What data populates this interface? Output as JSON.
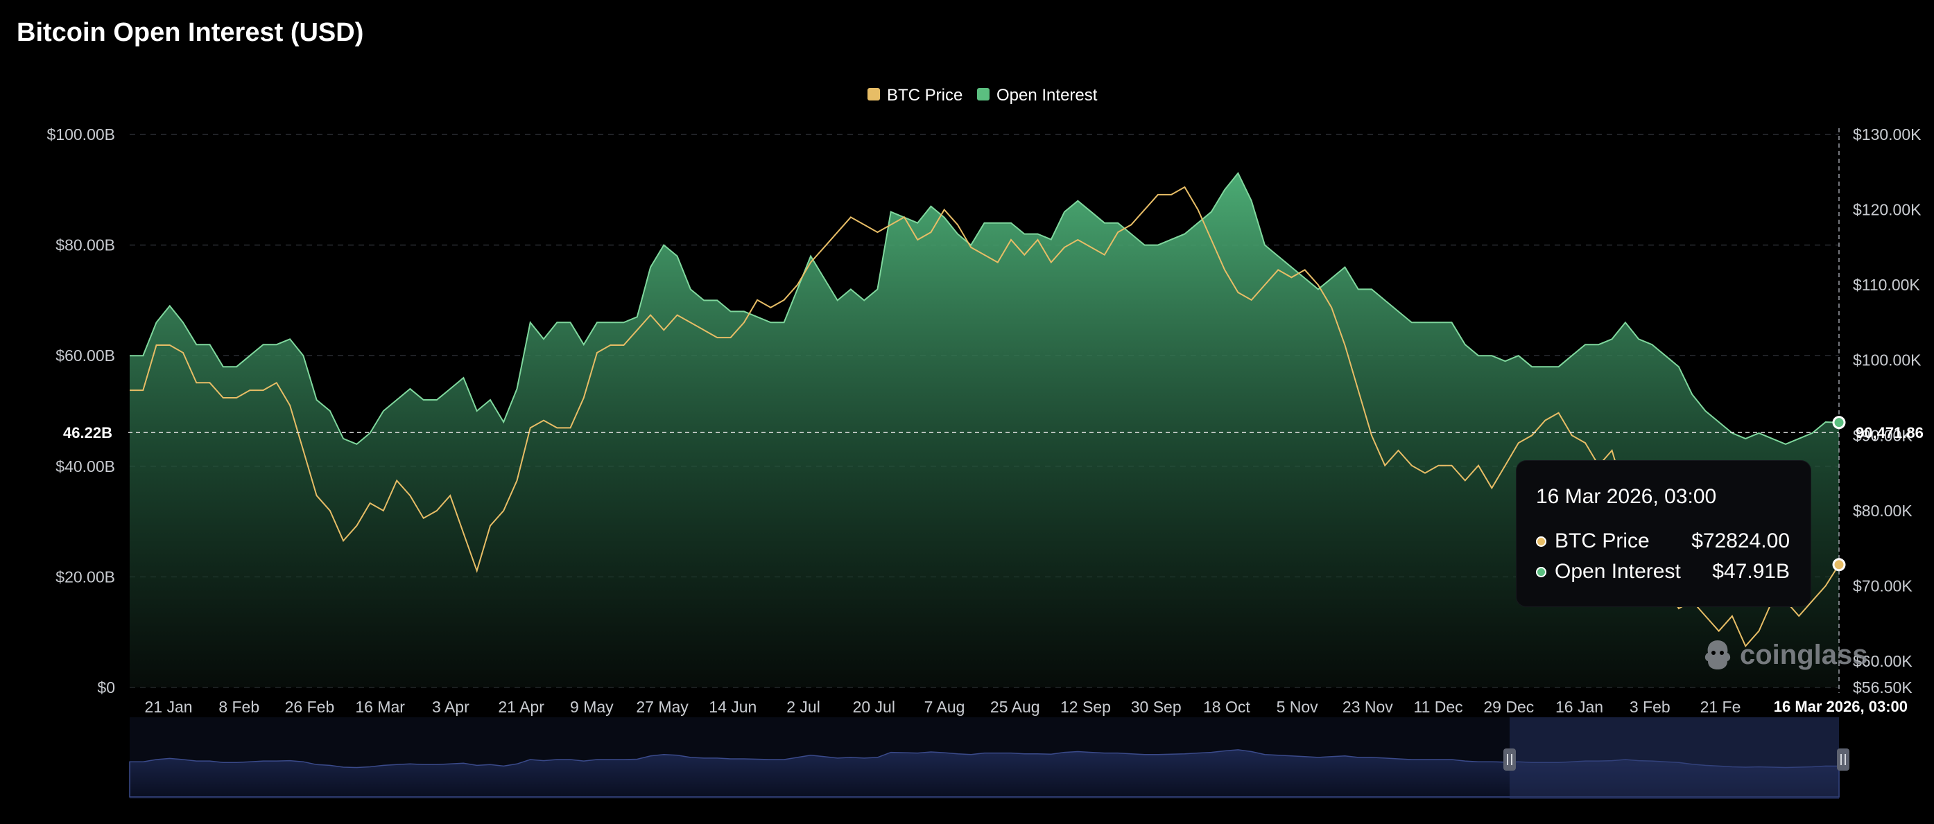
{
  "chart_data": {
    "type": "area",
    "title": "Bitcoin Open Interest (USD)",
    "legend_position": "top-center",
    "grid": true,
    "legend": [
      {
        "name": "BTC Price",
        "color": "#e7bd66"
      },
      {
        "name": "Open Interest",
        "color": "#5bbf80"
      }
    ],
    "x_tick_labels": [
      "21 Jan",
      "8 Feb",
      "26 Feb",
      "16 Mar",
      "3 Apr",
      "21 Apr",
      "9 May",
      "27 May",
      "14 Jun",
      "2 Jul",
      "20 Jul",
      "7 Aug",
      "25 Aug",
      "12 Sep",
      "30 Sep",
      "18 Oct",
      "5 Nov",
      "23 Nov",
      "11 Dec",
      "29 Dec",
      "16 Jan",
      "3 Feb",
      "21 Fe"
    ],
    "y_left": {
      "ticks": [
        "$0",
        "$20.00B",
        "$40.00B",
        "$60.00B",
        "$80.00B",
        "$100.00B"
      ],
      "range": [
        0,
        100
      ]
    },
    "y_right": {
      "ticks": [
        "$56.50K",
        "$60.00K",
        "$70.00K",
        "$80.00K",
        "$90.00K",
        "$100.00K",
        "$110.00K",
        "$120.00K",
        "$130.00K"
      ],
      "range": [
        56.5,
        130
      ]
    },
    "series": [
      {
        "name": "Open Interest",
        "unit": "B USD",
        "color": "#5bbf80",
        "values": [
          60,
          60,
          66,
          69,
          66,
          62,
          62,
          58,
          58,
          60,
          62,
          62,
          63,
          60,
          52,
          50,
          45,
          44,
          46,
          50,
          52,
          54,
          52,
          52,
          54,
          56,
          50,
          52,
          48,
          54,
          66,
          63,
          66,
          66,
          62,
          66,
          66,
          66,
          67,
          76,
          80,
          78,
          72,
          70,
          70,
          68,
          68,
          67,
          66,
          66,
          72,
          78,
          74,
          70,
          72,
          70,
          72,
          86,
          85,
          84,
          87,
          85,
          82,
          80,
          84,
          84,
          84,
          82,
          82,
          81,
          86,
          88,
          86,
          84,
          84,
          82,
          80,
          80,
          81,
          82,
          84,
          86,
          90,
          93,
          88,
          80,
          78,
          76,
          74,
          72,
          74,
          76,
          72,
          72,
          70,
          68,
          66,
          66,
          66,
          66,
          62,
          60,
          60,
          59,
          60,
          58,
          58,
          58,
          60,
          62,
          62,
          63,
          66,
          63,
          62,
          60,
          58,
          53,
          50,
          48,
          46,
          45,
          46,
          45,
          44,
          45,
          46,
          48,
          47.91
        ]
      },
      {
        "name": "BTC Price",
        "unit": "K USD",
        "color": "#e7bd66",
        "values": [
          96,
          96,
          102,
          102,
          101,
          97,
          97,
          95,
          95,
          96,
          96,
          97,
          94,
          88,
          82,
          80,
          76,
          78,
          81,
          80,
          84,
          82,
          79,
          80,
          82,
          77,
          72,
          78,
          80,
          84,
          91,
          92,
          91,
          91,
          95,
          101,
          102,
          102,
          104,
          106,
          104,
          106,
          105,
          104,
          103,
          103,
          105,
          108,
          107,
          108,
          110,
          113,
          115,
          117,
          119,
          118,
          117,
          118,
          119,
          116,
          117,
          120,
          118,
          115,
          114,
          113,
          116,
          114,
          116,
          113,
          115,
          116,
          115,
          114,
          117,
          118,
          120,
          122,
          122,
          123,
          120,
          116,
          112,
          109,
          108,
          110,
          112,
          111,
          112,
          110,
          107,
          102,
          96,
          90,
          86,
          88,
          86,
          85,
          86,
          86,
          84,
          86,
          83,
          86,
          89,
          90,
          92,
          93,
          90,
          89,
          86,
          88,
          82,
          76,
          73,
          70,
          67,
          68,
          66,
          64,
          66,
          62,
          64,
          68,
          68,
          66,
          68,
          70,
          72.82
        ]
      }
    ],
    "tooltip": {
      "date": "16 Mar 2026, 03:00",
      "rows": [
        {
          "label": "BTC Price",
          "value": "$72824.00",
          "color": "#e7bd66"
        },
        {
          "label": "Open Interest",
          "value": "$47.91B",
          "color": "#5bbf80"
        }
      ]
    },
    "crosshair": {
      "left_label": "46.22B",
      "right_label": "90,471.86",
      "x_label": "16 Mar 2026, 03:00"
    },
    "watermark": "coinglass"
  }
}
